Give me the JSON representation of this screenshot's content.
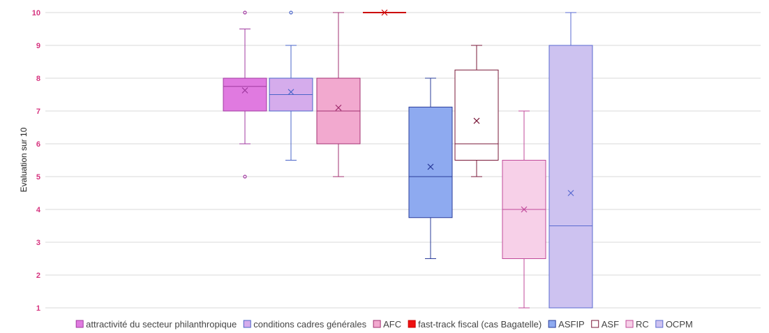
{
  "chart_data": {
    "type": "box",
    "title": "",
    "xlabel": "",
    "ylabel": "Evaluation sur 10",
    "ylim": [
      1,
      10
    ],
    "yticks": [
      1,
      2,
      3,
      4,
      5,
      6,
      7,
      8,
      9,
      10
    ],
    "grid": true,
    "legend_position": "bottom",
    "series": [
      {
        "name": "attractivité du secteur philanthropique",
        "color": "#d65fd6",
        "fill": "#e07ae0",
        "stroke": "#a03aa0",
        "min": 6,
        "q1": 7,
        "median": 7.75,
        "q3": 8,
        "max": 9.5,
        "mean": 7.63,
        "outliers": [
          10,
          5
        ]
      },
      {
        "name": "conditions cadres générales",
        "color": "#c9a3ea",
        "fill": "#d5acec",
        "stroke": "#4a64c8",
        "min": 5.5,
        "q1": 7,
        "median": 7.5,
        "q3": 8,
        "max": 9,
        "mean": 7.58,
        "outliers": [
          10
        ]
      },
      {
        "name": "AFC",
        "color": "#f0a8cf",
        "fill": "#f2a9cf",
        "stroke": "#a23070",
        "min": 5,
        "q1": 6,
        "median": 7,
        "q3": 8,
        "max": 10,
        "mean": 7.1,
        "outliers": []
      },
      {
        "name": "fast-track fiscal (cas Bagatelle)",
        "color": "#ee1111",
        "fill": "#ee1111",
        "stroke": "#cc0000",
        "min": 10,
        "q1": 10,
        "median": 10,
        "q3": 10,
        "max": 10,
        "mean": 10,
        "outliers": []
      },
      {
        "name": "ASFIP",
        "color": "#7e9cf0",
        "fill": "#8eaaf0",
        "stroke": "#2a3c9a",
        "min": 2.5,
        "q1": 3.75,
        "median": 5,
        "q3": 7.12,
        "max": 8,
        "mean": 5.3,
        "outliers": []
      },
      {
        "name": "ASF",
        "color": "#ffffff",
        "fill": "#ffffff",
        "stroke": "#7a1838",
        "min": 5,
        "q1": 5.5,
        "median": 6,
        "q3": 8.25,
        "max": 9,
        "mean": 6.7,
        "outliers": []
      },
      {
        "name": "RC",
        "color": "#f6cde6",
        "fill": "#f7d0e8",
        "stroke": "#c04a9a",
        "min": 1,
        "q1": 2.5,
        "median": 4,
        "q3": 5.5,
        "max": 7,
        "mean": 4,
        "outliers": []
      },
      {
        "name": "OCPM",
        "color": "#cdbff0",
        "fill": "#cdc2f0",
        "stroke": "#5a6ad0",
        "min": 1,
        "q1": 1,
        "median": 3.5,
        "q3": 9,
        "max": 10,
        "mean": 4.5,
        "outliers": []
      }
    ]
  }
}
